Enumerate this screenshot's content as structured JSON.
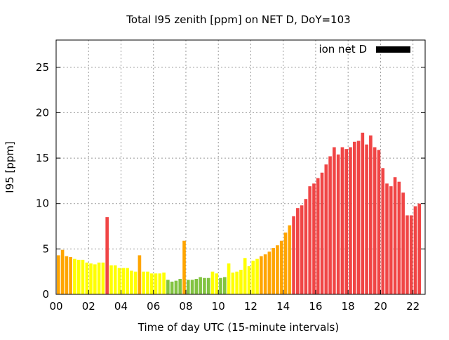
{
  "chart_data": {
    "type": "bar",
    "title": "Total I95 zenith [ppm] on NET D, DoY=103",
    "xlabel": "Time of day UTC (15-minute intervals)",
    "ylabel": "I95 [ppm]",
    "xlim": [
      0,
      22.75
    ],
    "ylim": [
      0,
      28
    ],
    "grid": true,
    "legend": {
      "label": "ion net D",
      "placement": "top-right",
      "color": "#000000"
    },
    "x_ticks": [
      "00",
      "02",
      "04",
      "06",
      "08",
      "10",
      "12",
      "14",
      "16",
      "18",
      "20",
      "22"
    ],
    "y_ticks": [
      "0",
      "5",
      "10",
      "15",
      "20",
      "25"
    ],
    "interval_hours": 0.25,
    "values": [
      4.3,
      4.9,
      4.2,
      4.1,
      3.9,
      3.8,
      3.8,
      3.5,
      3.4,
      3.3,
      3.5,
      3.5,
      8.5,
      3.2,
      3.2,
      2.9,
      2.9,
      2.9,
      2.6,
      2.5,
      4.3,
      2.5,
      2.5,
      2.3,
      2.3,
      2.3,
      2.4,
      1.6,
      1.4,
      1.5,
      1.7,
      5.9,
      1.6,
      1.6,
      1.7,
      1.9,
      1.8,
      1.8,
      2.5,
      2.3,
      1.8,
      1.9,
      3.4,
      2.4,
      2.5,
      2.7,
      4.0,
      3.1,
      3.7,
      3.9,
      4.2,
      4.4,
      4.7,
      5.1,
      5.4,
      5.9,
      6.8,
      7.6,
      8.6,
      9.5,
      9.8,
      10.5,
      11.9,
      12.2,
      12.8,
      13.4,
      14.3,
      15.2,
      16.2,
      15.4,
      16.2,
      16.0,
      16.2,
      16.8,
      16.9,
      17.8,
      16.5,
      17.5,
      16.2,
      15.9,
      13.9,
      12.2,
      11.9,
      12.9,
      12.4,
      11.2,
      8.7,
      8.7,
      9.7,
      10.0
    ],
    "color_scale": [
      {
        "max": 2.0,
        "color": "#82c341"
      },
      {
        "max": 4.1,
        "color": "#ffff00"
      },
      {
        "max": 8.0,
        "color": "#ffa500"
      },
      {
        "max": 1000,
        "color": "#f04545"
      }
    ]
  }
}
